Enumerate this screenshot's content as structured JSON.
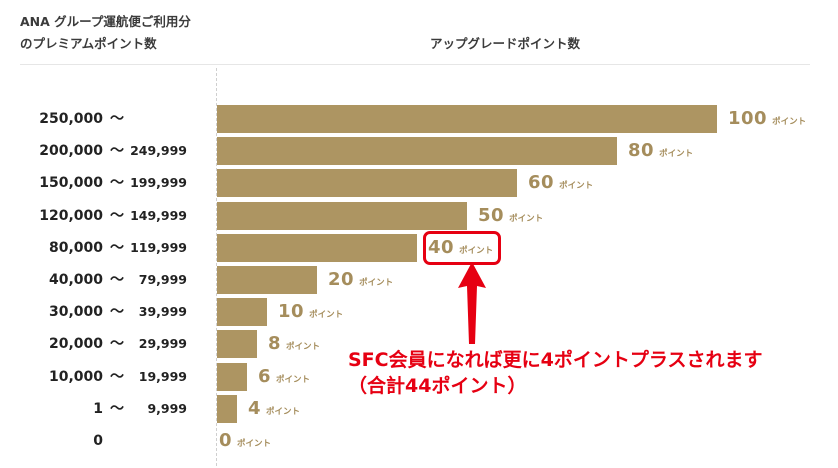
{
  "header": {
    "left_line1": "ANA グループ運航便ご利用分",
    "left_line2": "のプレミアムポイント数",
    "right": "アップグレードポイント数"
  },
  "colors": {
    "bar": "#ad9562",
    "value_text": "#a58d5c",
    "highlight": "#e60012"
  },
  "chart_data": {
    "type": "bar",
    "orientation": "horizontal",
    "categories": [
      "250,000 〜",
      "200,000 〜 249,999",
      "150,000 〜 199,999",
      "120,000 〜 149,999",
      "80,000 〜 119,999",
      "40,000 〜 79,999",
      "30,000 〜 39,999",
      "20,000 〜 29,999",
      "10,000 〜 19,999",
      "1 〜 9,999",
      "0"
    ],
    "rows": [
      {
        "min": "250,000",
        "tilde": "〜",
        "max": "",
        "value": 100
      },
      {
        "min": "200,000",
        "tilde": "〜",
        "max": "249,999",
        "value": 80
      },
      {
        "min": "150,000",
        "tilde": "〜",
        "max": "199,999",
        "value": 60
      },
      {
        "min": "120,000",
        "tilde": "〜",
        "max": "149,999",
        "value": 50
      },
      {
        "min": "80,000",
        "tilde": "〜",
        "max": "119,999",
        "value": 40
      },
      {
        "min": "40,000",
        "tilde": "〜",
        "max": "79,999",
        "value": 20
      },
      {
        "min": "30,000",
        "tilde": "〜",
        "max": "39,999",
        "value": 10
      },
      {
        "min": "20,000",
        "tilde": "〜",
        "max": "29,999",
        "value": 8
      },
      {
        "min": "10,000",
        "tilde": "〜",
        "max": "19,999",
        "value": 6
      },
      {
        "min": "1",
        "tilde": "〜",
        "max": "9,999",
        "value": 4
      },
      {
        "min": "0",
        "tilde": "",
        "max": "",
        "value": 0
      }
    ],
    "value_unit": "ポイント",
    "xlim": [
      0,
      100
    ],
    "grid": false,
    "highlighted_category": "80,000 〜 119,999"
  },
  "annotation": {
    "line1": "SFC会員になれば更に4ポイントプラスされます",
    "line2": "（合計44ポイント）"
  }
}
